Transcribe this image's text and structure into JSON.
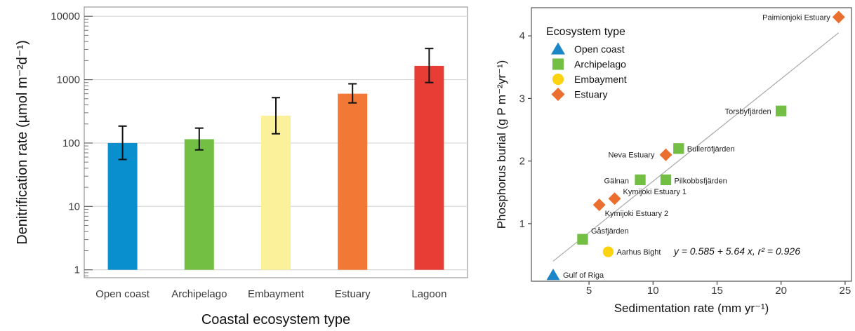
{
  "chart_data": [
    {
      "type": "bar",
      "scale_y": "log10",
      "categories": [
        "Open coast",
        "Archipelago",
        "Embayment",
        "Estuary",
        "Lagoon"
      ],
      "values": [
        100,
        115,
        270,
        600,
        1650
      ],
      "error_low": [
        55,
        78,
        140,
        430,
        900
      ],
      "error_high": [
        185,
        172,
        520,
        860,
        3100
      ],
      "colors": [
        "#0a8fce",
        "#72bf44",
        "#fbf19a",
        "#f27935",
        "#e83d34"
      ],
      "xlabel": "Coastal ecosystem type",
      "ylabel": "Denitrification rate (µmol m⁻²d⁻¹)",
      "ylim": [
        0.75,
        14000
      ],
      "yticks": [
        "1",
        "10",
        "100",
        "1000",
        "10000"
      ],
      "grid": true
    },
    {
      "type": "scatter",
      "xlabel": "Sedimentation rate (mm yr⁻¹)",
      "ylabel": "Phosphorus burial (g P m⁻²yr⁻¹)",
      "xlim": [
        0.5,
        25.5
      ],
      "ylim": [
        0.08,
        4.45
      ],
      "xticks": [
        "5",
        "10",
        "15",
        "20",
        "25"
      ],
      "yticks": [
        "1",
        "2",
        "3",
        "4"
      ],
      "legend": {
        "title": "Ecosystem type",
        "position": "top-left",
        "items": [
          {
            "label": "Open coast",
            "marker": "triangle",
            "color": "#1a86c8"
          },
          {
            "label": "Archipelago",
            "marker": "square",
            "color": "#72bf44"
          },
          {
            "label": "Embayment",
            "marker": "circle",
            "color": "#fdd20e"
          },
          {
            "label": "Estuary",
            "marker": "diamond",
            "color": "#ea6f2e"
          }
        ]
      },
      "points": [
        {
          "label": "Gulf of Riga",
          "type": "Open coast",
          "x": 2.2,
          "y": 0.18
        },
        {
          "label": "Gåsfjärden",
          "type": "Archipelago",
          "x": 4.5,
          "y": 0.75
        },
        {
          "label": "Aarhus Bight",
          "type": "Embayment",
          "x": 6.5,
          "y": 0.55
        },
        {
          "label": "Kymijoki Estuary 2",
          "type": "Estuary",
          "x": 5.8,
          "y": 1.3
        },
        {
          "label": "Kymijoki Estuary 1",
          "type": "Estuary",
          "x": 7.0,
          "y": 1.4
        },
        {
          "label": "Gälnan",
          "type": "Archipelago",
          "x": 9.0,
          "y": 1.7
        },
        {
          "label": "Pilkobbsfjärden",
          "type": "Archipelago",
          "x": 11.0,
          "y": 1.7
        },
        {
          "label": "Neva Estuary",
          "type": "Estuary",
          "x": 11.0,
          "y": 2.1
        },
        {
          "label": "Bulleröfjärden",
          "type": "Archipelago",
          "x": 12.0,
          "y": 2.2
        },
        {
          "label": "Torsbyfjärden",
          "type": "Archipelago",
          "x": 20.0,
          "y": 2.8
        },
        {
          "label": "Paimionjoki Estuary",
          "type": "Estuary",
          "x": 24.5,
          "y": 4.3
        }
      ],
      "fit_line": {
        "intercept": 0.585,
        "slope": 5.64,
        "x_from": 2.2,
        "x_to": 24.5
      },
      "annotation": "y = 0.585 + 5.64 x,  r² = 0.926"
    }
  ]
}
